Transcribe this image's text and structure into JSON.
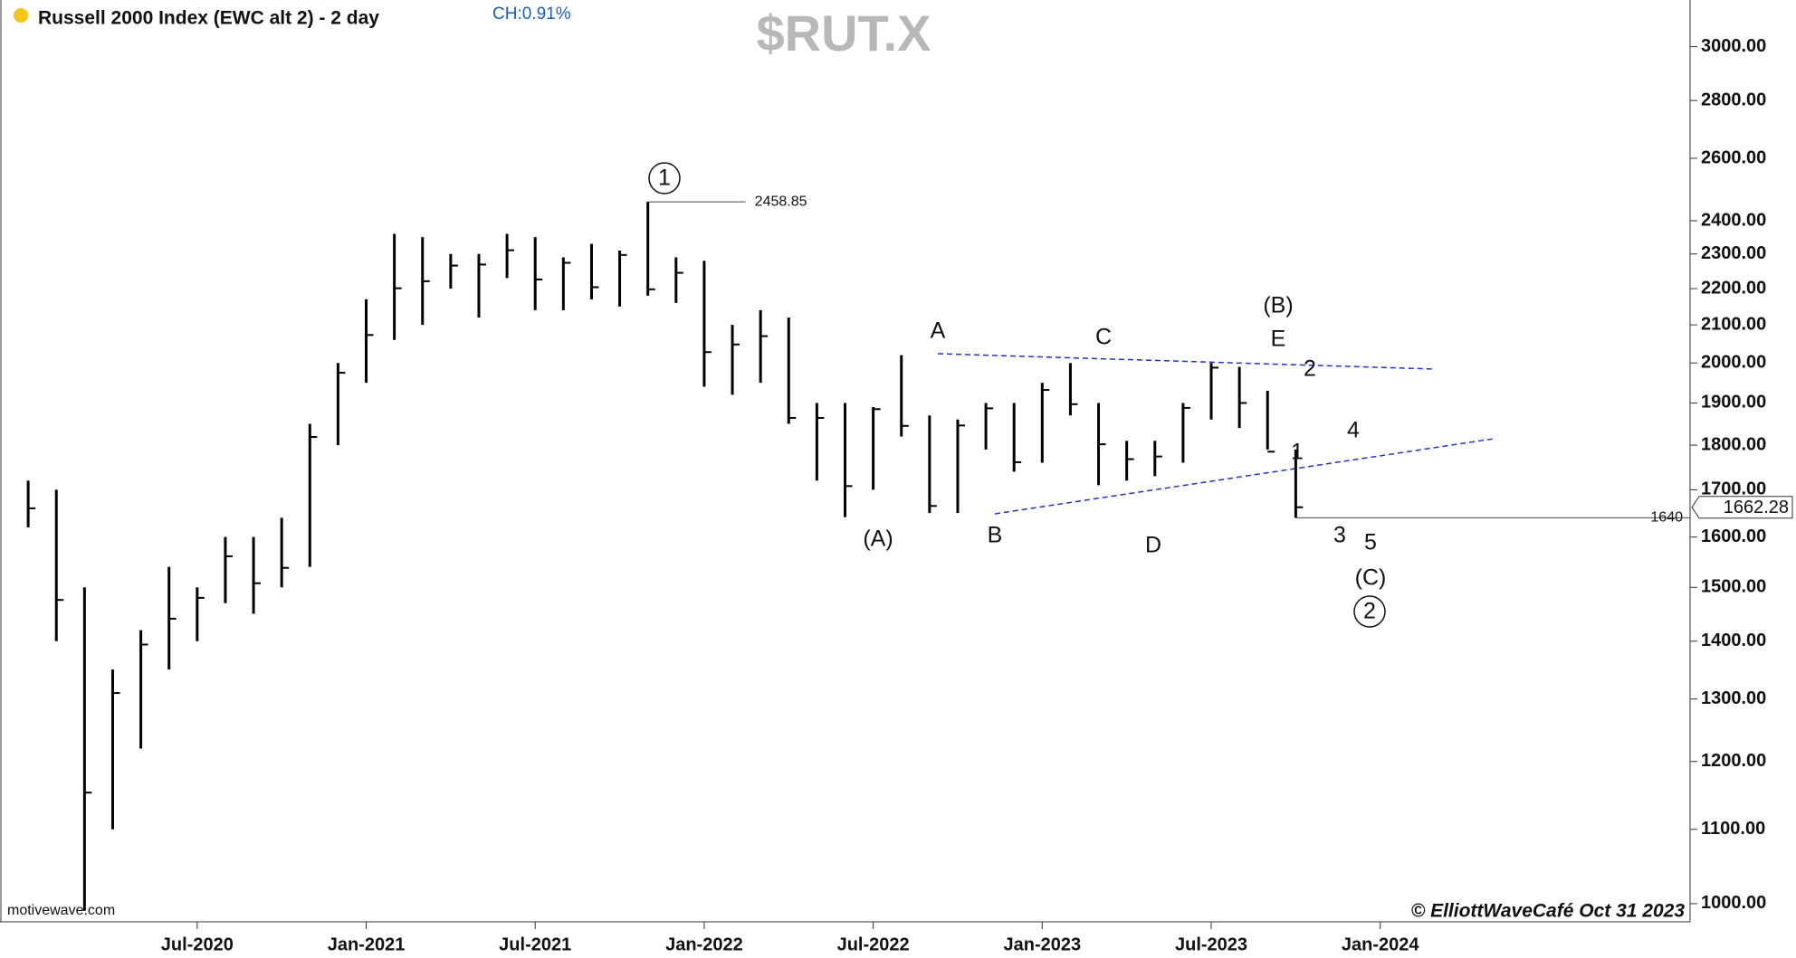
{
  "chart_data": {
    "type": "ohlc",
    "title": "Russell 2000 Index (EWC alt 2) - 2 day",
    "change_label": "CH:0.91%",
    "symbol": "$RUT.X",
    "watermark": "motivewave.com",
    "credit": "© ElliottWaveCafé Oct 31 2023",
    "log_scale": true,
    "grid": false,
    "x": [
      "2020-01",
      "2020-02",
      "2020-03",
      "2020-04",
      "2020-05",
      "2020-06",
      "2020-07",
      "2020-08",
      "2020-09",
      "2020-10",
      "2020-11",
      "2020-12",
      "2021-01",
      "2021-02",
      "2021-03",
      "2021-04",
      "2021-05",
      "2021-06",
      "2021-07",
      "2021-08",
      "2021-09",
      "2021-10",
      "2021-11",
      "2021-12",
      "2022-01",
      "2022-02",
      "2022-03",
      "2022-04",
      "2022-05",
      "2022-06",
      "2022-07",
      "2022-08",
      "2022-09",
      "2022-10",
      "2022-11",
      "2022-12",
      "2023-01",
      "2023-02",
      "2023-03",
      "2023-04",
      "2023-05",
      "2023-06",
      "2023-07",
      "2023-08",
      "2023-09",
      "2023-10"
    ],
    "series": [
      {
        "name": "Russell 2000 Index",
        "color": "#000000",
        "high": [
          1720,
          1700,
          1500,
          1350,
          1420,
          1540,
          1500,
          1600,
          1600,
          1640,
          1850,
          2000,
          2170,
          2360,
          2350,
          2300,
          2300,
          2360,
          2350,
          2290,
          2330,
          2310,
          2458.85,
          2290,
          2280,
          2100,
          2140,
          2120,
          1900,
          1900,
          1890,
          2020,
          1870,
          1860,
          1900,
          1900,
          1950,
          2000,
          1900,
          1810,
          1810,
          1900,
          2000,
          1990,
          1930,
          1790
        ],
        "low": [
          1620,
          1400,
          991,
          1100,
          1220,
          1350,
          1400,
          1470,
          1450,
          1500,
          1540,
          1800,
          1950,
          2060,
          2100,
          2200,
          2120,
          2230,
          2140,
          2140,
          2170,
          2150,
          2180,
          2160,
          1940,
          1920,
          1950,
          1850,
          1720,
          1641.47,
          1700,
          1820,
          1650,
          1650,
          1790,
          1740,
          1760,
          1870,
          1710,
          1720,
          1730,
          1760,
          1860,
          1840,
          1790,
          1640
        ],
        "close": [
          1660,
          1476,
          1153,
          1310,
          1394,
          1441,
          1480,
          1561,
          1508,
          1538,
          1819,
          1975,
          2073,
          2201,
          2221,
          2266,
          2269,
          2311,
          2226,
          2274,
          2204,
          2297,
          2198,
          2245,
          2028,
          2048,
          2070,
          1864,
          1864,
          1708,
          1885,
          1845,
          1665,
          1846,
          1887,
          1761,
          1932,
          1897,
          1802,
          1768,
          1774,
          1888,
          1988,
          1900,
          1785,
          1662.28
        ]
      }
    ],
    "xlim": [
      "2019-12",
      "2024-12"
    ],
    "xticks": [
      {
        "value": "2020-07",
        "label": "Jul-2020"
      },
      {
        "value": "2021-01",
        "label": "Jan-2021"
      },
      {
        "value": "2021-07",
        "label": "Jul-2021"
      },
      {
        "value": "2022-01",
        "label": "Jan-2022"
      },
      {
        "value": "2022-07",
        "label": "Jul-2022"
      },
      {
        "value": "2023-01",
        "label": "Jan-2023"
      },
      {
        "value": "2023-07",
        "label": "Jul-2023"
      },
      {
        "value": "2024-01",
        "label": "Jan-2024"
      }
    ],
    "ylim": [
      977,
      3185
    ],
    "yticks": [
      {
        "value": 1000,
        "label": "1000.00"
      },
      {
        "value": 1100,
        "label": "1100.00"
      },
      {
        "value": 1200,
        "label": "1200.00"
      },
      {
        "value": 1300,
        "label": "1300.00"
      },
      {
        "value": 1400,
        "label": "1400.00"
      },
      {
        "value": 1500,
        "label": "1500.00"
      },
      {
        "value": 1600,
        "label": "1600.00"
      },
      {
        "value": 1700,
        "label": "1700.00"
      },
      {
        "value": 1800,
        "label": "1800.00"
      },
      {
        "value": 1900,
        "label": "1900.00"
      },
      {
        "value": 2000,
        "label": "2000.00"
      },
      {
        "value": 2100,
        "label": "2100.00"
      },
      {
        "value": 2200,
        "label": "2200.00"
      },
      {
        "value": 2300,
        "label": "2300.00"
      },
      {
        "value": 2400,
        "label": "2400.00"
      },
      {
        "value": 2600,
        "label": "2600.00"
      },
      {
        "value": 2800,
        "label": "2800.00"
      },
      {
        "value": 3000,
        "label": "3000.00"
      }
    ],
    "wave_labels": [
      "1",
      "(A)",
      "A",
      "B",
      "C",
      "D",
      "(B)",
      "E",
      "2",
      "1",
      "4",
      "3",
      "5",
      "(C)",
      "2"
    ]
  }
}
